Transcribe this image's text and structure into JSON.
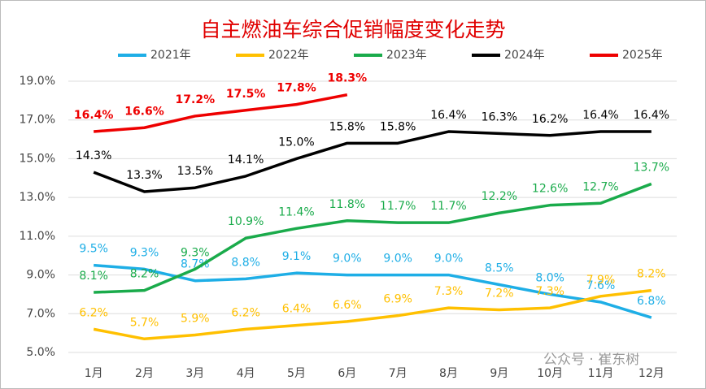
{
  "chart_data": {
    "type": "line",
    "title": "自主燃油车综合促销幅度变化走势",
    "categories": [
      "1月",
      "2月",
      "3月",
      "4月",
      "5月",
      "6月",
      "7月",
      "8月",
      "9月",
      "10月",
      "11月",
      "12月"
    ],
    "ylim": [
      5,
      19
    ],
    "yticks": [
      {
        "value": 5,
        "label": "5.0%"
      },
      {
        "value": 7,
        "label": "7.0%"
      },
      {
        "value": 9,
        "label": "9.0%"
      },
      {
        "value": 11,
        "label": "11.0%"
      },
      {
        "value": 13,
        "label": "13.0%"
      },
      {
        "value": 15,
        "label": "15.0%"
      },
      {
        "value": 17,
        "label": "17.0%"
      },
      {
        "value": 19,
        "label": "19.0%"
      }
    ],
    "grid": true,
    "legend": "top",
    "series": [
      {
        "name": "2021年",
        "color": "#1eaee6",
        "values": [
          9.5,
          9.3,
          8.7,
          8.8,
          9.1,
          9.0,
          9.0,
          9.0,
          8.5,
          8.0,
          7.6,
          6.8
        ],
        "value_labels": [
          "9.5%",
          "9.3%",
          "8.7%",
          "8.8%",
          "9.1%",
          "9.0%",
          "9.0%",
          "9.0%",
          "8.5%",
          "8.0%",
          "7.6%",
          "6.8%"
        ]
      },
      {
        "name": "2022年",
        "color": "#ffc000",
        "values": [
          6.2,
          5.7,
          5.9,
          6.2,
          6.4,
          6.6,
          6.9,
          7.3,
          7.2,
          7.3,
          7.9,
          8.2
        ],
        "value_labels": [
          "6.2%",
          "5.7%",
          "5.9%",
          "6.2%",
          "6.4%",
          "6.6%",
          "6.9%",
          "7.3%",
          "7.2%",
          "7.3%",
          "7.9%",
          "8.2%"
        ]
      },
      {
        "name": "2023年",
        "color": "#1aab4b",
        "values": [
          8.1,
          8.2,
          9.3,
          10.9,
          11.4,
          11.8,
          11.7,
          11.7,
          12.2,
          12.6,
          12.7,
          13.7
        ],
        "value_labels": [
          "8.1%",
          "8.2%",
          "9.3%",
          "10.9%",
          "11.4%",
          "11.8%",
          "11.7%",
          "11.7%",
          "12.2%",
          "12.6%",
          "12.7%",
          "13.7%"
        ]
      },
      {
        "name": "2024年",
        "color": "#000000",
        "values": [
          14.3,
          13.3,
          13.5,
          14.1,
          15.0,
          15.8,
          15.8,
          16.4,
          16.3,
          16.2,
          16.4,
          16.4
        ],
        "value_labels": [
          "14.3%",
          "13.3%",
          "13.5%",
          "14.1%",
          "15.0%",
          "15.8%",
          "15.8%",
          "16.4%",
          "16.3%",
          "16.2%",
          "16.4%",
          "16.4%"
        ]
      },
      {
        "name": "2025年",
        "color": "#ee0000",
        "values": [
          16.4,
          16.6,
          17.2,
          17.5,
          17.8,
          18.3,
          null,
          null,
          null,
          null,
          null,
          null
        ],
        "value_labels": [
          "16.4%",
          "16.6%",
          "17.2%",
          "17.5%",
          "17.8%",
          "18.3%",
          null,
          null,
          null,
          null,
          null,
          null
        ]
      }
    ],
    "watermark": "公众号 · 崔东树"
  }
}
